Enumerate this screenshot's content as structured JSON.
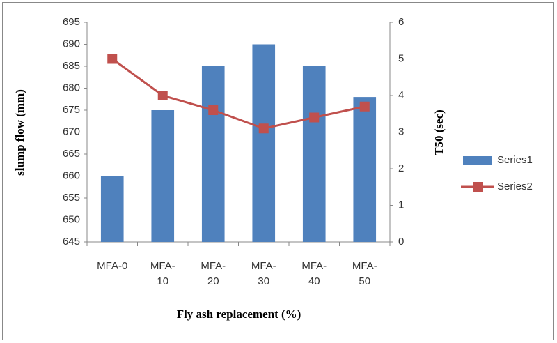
{
  "chart_data": {
    "type": "bar",
    "categories": [
      "MFA-0",
      "MFA-10",
      "MFA-20",
      "MFA-30",
      "MFA-40",
      "MFA-50"
    ],
    "series": [
      {
        "name": "Series1",
        "type": "bar",
        "color": "#4f81bd",
        "values": [
          660,
          675,
          685,
          690,
          685,
          678
        ]
      },
      {
        "name": "Series2",
        "type": "line",
        "axis": "y2",
        "color": "#c0504d",
        "values": [
          5,
          4,
          3.6,
          3.1,
          3.4,
          3.7
        ]
      }
    ],
    "x_label": "Fly ash replacement (%)",
    "y_label": "slump flow (mm)",
    "y2_label": "T50 (sec)",
    "ylim": [
      645,
      695
    ],
    "yticks": [
      645,
      650,
      655,
      660,
      665,
      670,
      675,
      680,
      685,
      690,
      695
    ],
    "y2lim": [
      0,
      6
    ],
    "y2ticks": [
      0,
      1,
      2,
      3,
      4,
      5,
      6
    ],
    "legend": "right",
    "grid": false
  }
}
